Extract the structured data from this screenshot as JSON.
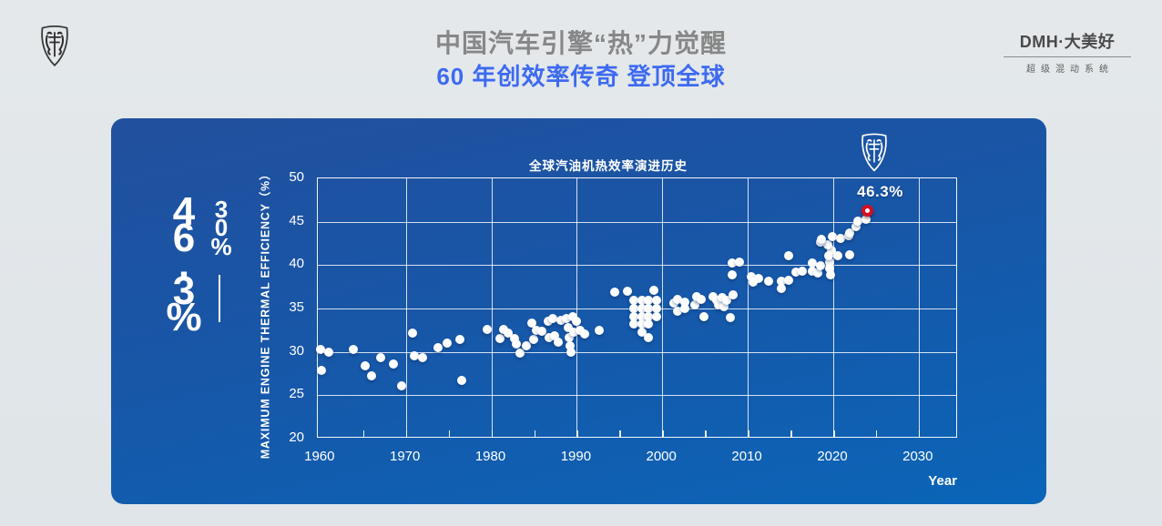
{
  "header": {
    "title": "中国汽车引擎“热”力觉醒",
    "subtitle": "60 年创效率传奇 登顶全球",
    "title_color": "#878787",
    "subtitle_color": "#3d6af0",
    "brand_main": "DMH·大美好",
    "brand_sub": "超级混动系统"
  },
  "panel": {
    "bg_top": "#21509e",
    "bg_bottom": "#0a65b8",
    "page_bg": "#e1e6e9"
  },
  "annotation": {
    "big": "46.3%",
    "small": "30%"
  },
  "chart_data": {
    "type": "scatter",
    "title": "全球汽油机热效率演进历史",
    "xlabel": "Year",
    "ylabel": "MAXIMUM ENGINE THERMAL EFFICIENCY（%）",
    "xlim": [
      1959.7,
      2034.6
    ],
    "ylim": [
      20,
      50
    ],
    "x_ticks": [
      1960,
      1970,
      1980,
      1990,
      2000,
      2010,
      2020,
      2030
    ],
    "y_ticks": [
      20,
      25,
      30,
      35,
      40,
      45,
      50
    ],
    "minor_x_start": 1965,
    "minor_x_step": 5,
    "grid": true,
    "point_color": "#ffffff",
    "points": [
      [
        1960.0,
        30.3
      ],
      [
        1960.1,
        27.9
      ],
      [
        1961.0,
        30.0
      ],
      [
        1963.9,
        30.3
      ],
      [
        1965.2,
        28.4
      ],
      [
        1966.0,
        27.2
      ],
      [
        1967.0,
        29.3
      ],
      [
        1968.5,
        28.6
      ],
      [
        1969.5,
        26.1
      ],
      [
        1970.8,
        32.2
      ],
      [
        1971.0,
        29.6
      ],
      [
        1971.9,
        29.3
      ],
      [
        1973.8,
        30.5
      ],
      [
        1974.8,
        31.0
      ],
      [
        1976.3,
        31.4
      ],
      [
        1976.5,
        26.7
      ],
      [
        1979.5,
        32.6
      ],
      [
        1981.0,
        31.5
      ],
      [
        1981.4,
        32.6
      ],
      [
        1982.0,
        32.2
      ],
      [
        1982.7,
        31.5
      ],
      [
        1982.9,
        30.9
      ],
      [
        1983.3,
        29.9
      ],
      [
        1984.1,
        30.7
      ],
      [
        1984.7,
        33.3
      ],
      [
        1984.9,
        31.4
      ],
      [
        1985.3,
        32.5
      ],
      [
        1985.9,
        32.4
      ],
      [
        1986.6,
        33.5
      ],
      [
        1986.8,
        31.6
      ],
      [
        1987.2,
        33.8
      ],
      [
        1987.4,
        31.9
      ],
      [
        1987.8,
        31.1
      ],
      [
        1988.1,
        33.6
      ],
      [
        1988.8,
        33.9
      ],
      [
        1989.0,
        32.8
      ],
      [
        1989.1,
        31.6
      ],
      [
        1989.2,
        30.7
      ],
      [
        1989.3,
        30.0
      ],
      [
        1989.5,
        34.1
      ],
      [
        1989.6,
        32.3
      ],
      [
        1989.9,
        33.5
      ],
      [
        1990.4,
        32.5
      ],
      [
        1990.9,
        32.1
      ],
      [
        1992.6,
        32.5
      ],
      [
        1994.4,
        36.9
      ],
      [
        1995.9,
        37.0
      ],
      [
        1999.0,
        37.1
      ],
      [
        1996.7,
        35.9
      ],
      [
        1996.7,
        35.0
      ],
      [
        1996.7,
        34.1
      ],
      [
        1996.7,
        33.2
      ],
      [
        1997.6,
        35.9
      ],
      [
        1997.6,
        35.0
      ],
      [
        1997.6,
        34.1
      ],
      [
        1997.6,
        33.2
      ],
      [
        1997.6,
        32.3
      ],
      [
        1998.4,
        35.9
      ],
      [
        1998.4,
        35.0
      ],
      [
        1998.4,
        34.1
      ],
      [
        1998.4,
        33.2
      ],
      [
        1998.4,
        31.7
      ],
      [
        1999.3,
        35.9
      ],
      [
        1999.3,
        35.0
      ],
      [
        1999.3,
        34.1
      ],
      [
        2001.4,
        35.6
      ],
      [
        2001.8,
        36.1
      ],
      [
        2001.8,
        34.7
      ],
      [
        2002.6,
        35.7
      ],
      [
        2002.6,
        35.0
      ],
      [
        2003.8,
        35.4
      ],
      [
        2004.0,
        36.4
      ],
      [
        2004.6,
        36.1
      ],
      [
        2004.9,
        34.1
      ],
      [
        2005.9,
        36.4
      ],
      [
        2006.4,
        36.0
      ],
      [
        2006.6,
        35.4
      ],
      [
        2007.0,
        36.3
      ],
      [
        2007.2,
        35.2
      ],
      [
        2007.5,
        36.0
      ],
      [
        2008.0,
        34.0
      ],
      [
        2008.2,
        40.2
      ],
      [
        2009.0,
        40.4
      ],
      [
        2008.2,
        38.9
      ],
      [
        2008.3,
        36.6
      ],
      [
        2010.4,
        38.7
      ],
      [
        2011.3,
        38.5
      ],
      [
        2010.6,
        38.0
      ],
      [
        2012.4,
        38.1
      ],
      [
        2013.9,
        38.2
      ],
      [
        2014.8,
        38.3
      ],
      [
        2013.9,
        37.3
      ],
      [
        2014.8,
        41.1
      ],
      [
        2015.6,
        39.2
      ],
      [
        2016.4,
        39.3
      ],
      [
        2017.6,
        40.3
      ],
      [
        2017.6,
        39.3
      ],
      [
        2018.2,
        39.1
      ],
      [
        2018.5,
        39.9
      ],
      [
        2019.6,
        40.4
      ],
      [
        2019.6,
        39.6
      ],
      [
        2019.7,
        38.9
      ],
      [
        2019.8,
        41.7
      ],
      [
        2019.4,
        42.4
      ],
      [
        2018.5,
        42.7
      ],
      [
        2019.5,
        41.1
      ],
      [
        2020.5,
        41.1
      ],
      [
        2021.9,
        41.2
      ],
      [
        2018.6,
        43.0
      ],
      [
        2019.9,
        43.3
      ],
      [
        2020.9,
        43.1
      ],
      [
        2021.8,
        43.4
      ],
      [
        2021.9,
        43.7
      ],
      [
        2022.7,
        44.4
      ],
      [
        2022.9,
        45.1
      ],
      [
        2023.8,
        45.3
      ]
    ],
    "highlight": {
      "x": 2024.0,
      "y": 46.3,
      "label": "46.3%",
      "color": "#d40f20"
    }
  }
}
